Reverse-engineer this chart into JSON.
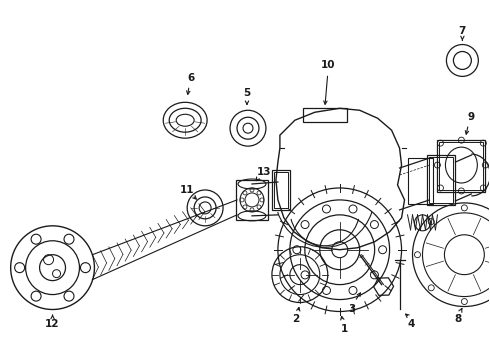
{
  "bg_color": "#ffffff",
  "line_color": "#1a1a1a",
  "figsize": [
    4.9,
    3.6
  ],
  "dpi": 100,
  "label_fontsize": 7.5
}
